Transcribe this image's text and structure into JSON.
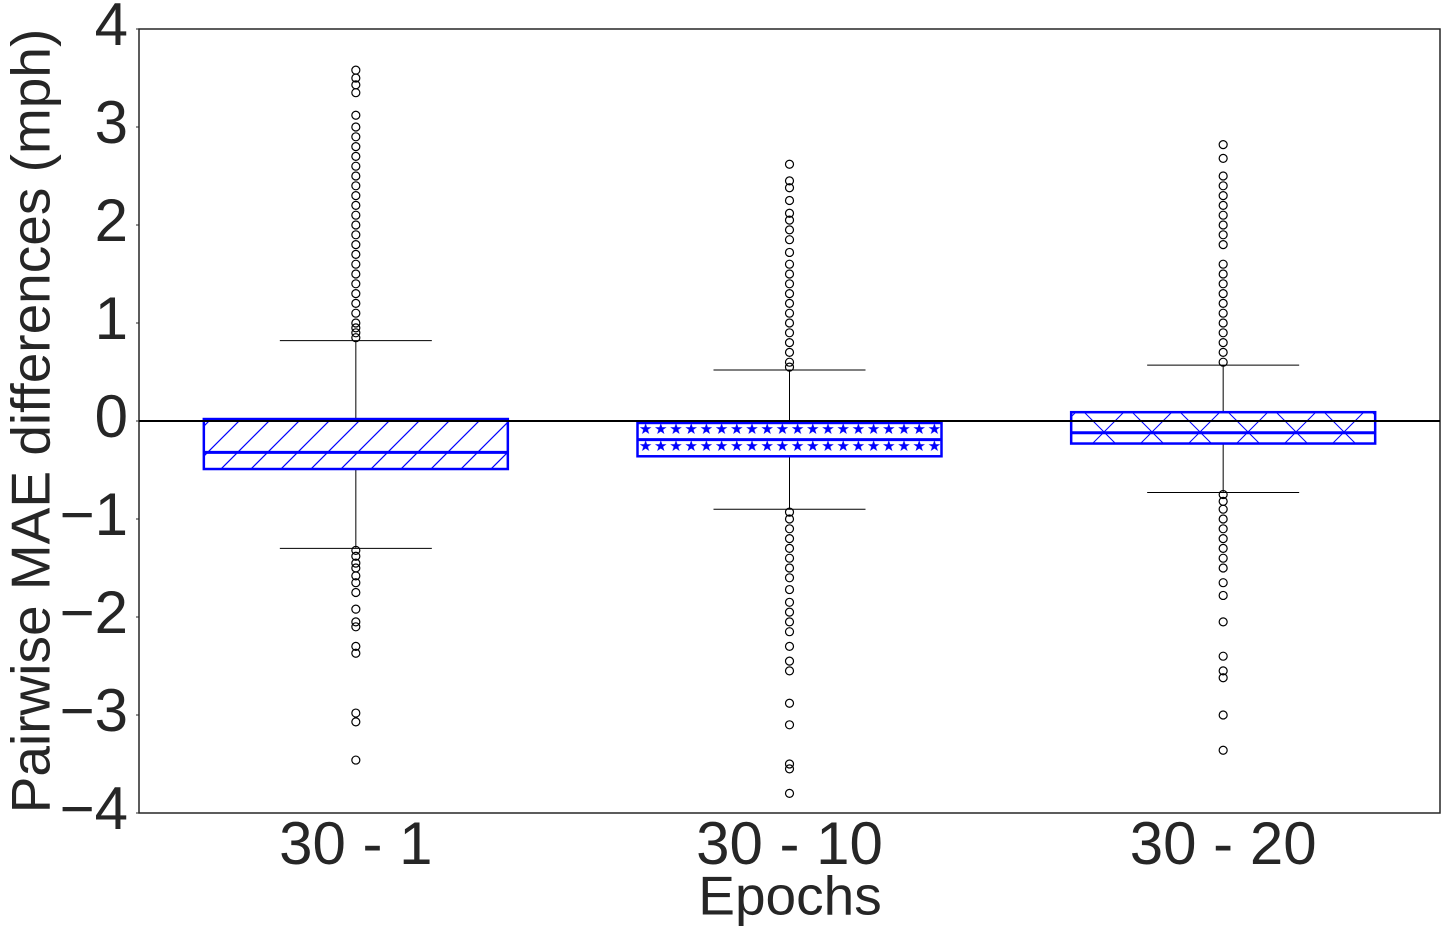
{
  "chart_data": {
    "type": "box",
    "x_label": "Epochs",
    "y_label": "Pairwise MAE differences (mph)",
    "categories": [
      "30 - 1",
      "30 - 10",
      "30 - 20"
    ],
    "box_color": "#0000ff",
    "whisker_color": "#000000",
    "hline": 0,
    "ylim": [
      -4,
      4
    ],
    "yticks": [
      {
        "value": -4,
        "label": "−4"
      },
      {
        "value": -3,
        "label": "−3"
      },
      {
        "value": -2,
        "label": "−2"
      },
      {
        "value": -1,
        "label": "−1"
      },
      0,
      1,
      2,
      3,
      4
    ],
    "boxes": [
      {
        "hatch": "/",
        "q1": -0.49,
        "median": -0.32,
        "q3": 0.02,
        "whislo": -1.3,
        "whishi": 0.82,
        "fliers": [
          3.58,
          3.5,
          3.43,
          3.35,
          3.12,
          3.0,
          2.9,
          2.8,
          2.7,
          2.6,
          2.5,
          2.4,
          2.3,
          2.2,
          2.1,
          2.0,
          1.9,
          1.8,
          1.7,
          1.6,
          1.5,
          1.4,
          1.3,
          1.2,
          1.1,
          1.0,
          0.95,
          0.9,
          0.85,
          -1.32,
          -1.38,
          -1.45,
          -1.5,
          -1.58,
          -1.65,
          -1.75,
          -1.92,
          -2.05,
          -2.1,
          -2.3,
          -2.37,
          -2.98,
          -3.07,
          -3.46
        ]
      },
      {
        "hatch": "*",
        "q1": -0.36,
        "median": -0.19,
        "q3": -0.02,
        "whislo": -0.9,
        "whishi": 0.52,
        "fliers": [
          2.62,
          2.45,
          2.38,
          2.25,
          2.12,
          2.05,
          1.95,
          1.85,
          1.72,
          1.6,
          1.5,
          1.4,
          1.3,
          1.2,
          1.1,
          1.0,
          0.9,
          0.8,
          0.7,
          0.6,
          0.55,
          -0.93,
          -1.0,
          -1.1,
          -1.2,
          -1.3,
          -1.4,
          -1.5,
          -1.6,
          -1.72,
          -1.85,
          -1.95,
          -2.05,
          -2.15,
          -2.3,
          -2.45,
          -2.55,
          -2.88,
          -3.1,
          -3.5,
          -3.55,
          -3.8
        ]
      },
      {
        "hatch": "x",
        "q1": -0.23,
        "median": -0.12,
        "q3": 0.09,
        "whislo": -0.73,
        "whishi": 0.57,
        "fliers": [
          2.82,
          2.68,
          2.5,
          2.4,
          2.3,
          2.2,
          2.1,
          2.0,
          1.9,
          1.8,
          1.6,
          1.5,
          1.4,
          1.3,
          1.2,
          1.1,
          1.0,
          0.9,
          0.8,
          0.7,
          0.6,
          -0.75,
          -0.82,
          -0.9,
          -1.0,
          -1.1,
          -1.2,
          -1.3,
          -1.4,
          -1.5,
          -1.65,
          -1.78,
          -2.05,
          -2.4,
          -2.55,
          -2.62,
          -3.0,
          -3.36
        ]
      }
    ]
  }
}
